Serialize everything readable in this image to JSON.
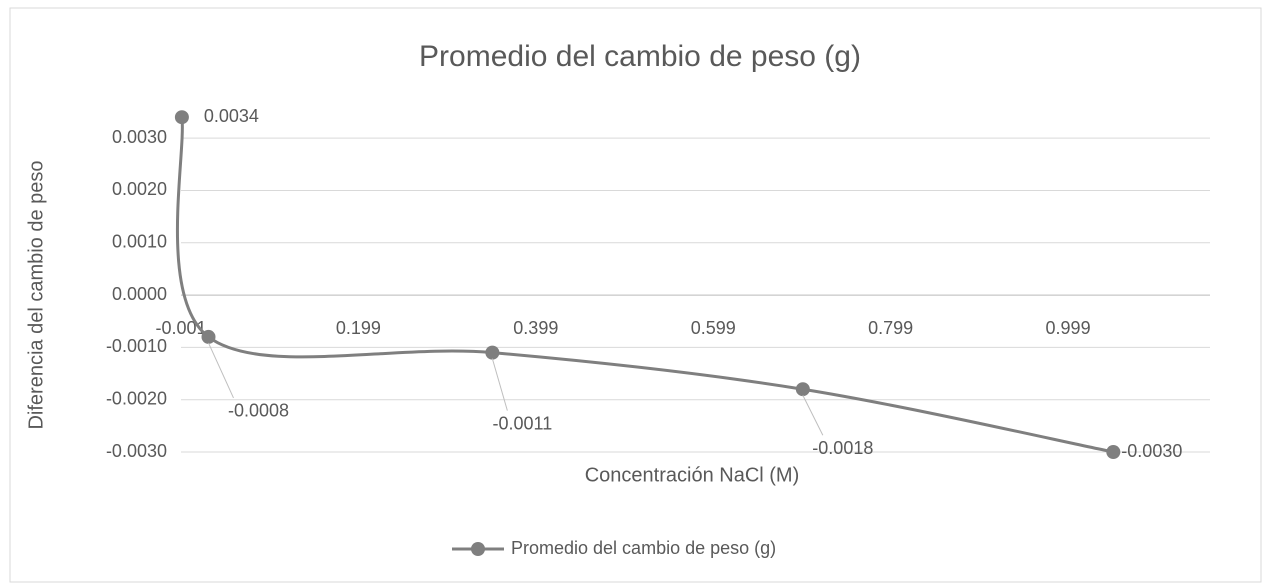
{
  "chart_data": {
    "type": "line",
    "title": "Promedio del cambio de peso (g)",
    "x_label": "Concentración NaCl  (M)",
    "y_label": "Diferencia del cambio de peso",
    "x": [
      0,
      0.03,
      0.35,
      0.7,
      1.05
    ],
    "series": [
      {
        "name": "Promedio del cambio de peso (g)",
        "color": "#7f7f7f",
        "values": [
          0.0034,
          -0.0008,
          -0.0011,
          -0.0018,
          -0.003
        ],
        "value_labels": [
          "0.0034",
          "-0.0008",
          "-0.0011",
          "-0.0018",
          "-0.0030"
        ]
      }
    ],
    "xlim": [
      -0.001,
      1.159
    ],
    "xticks": [
      -0.001,
      0.199,
      0.399,
      0.599,
      0.799,
      0.999
    ],
    "ylim": [
      -0.003,
      0.0035
    ],
    "yticks": [
      {
        "value": 0.003,
        "label": "0.0030"
      },
      {
        "value": 0.002,
        "label": "0.0020"
      },
      {
        "value": 0.001,
        "label": "0.0010"
      },
      {
        "value": 0,
        "label": "0.0000"
      },
      {
        "value": -0.001,
        "label": "-0.0010"
      },
      {
        "value": -0.002,
        "label": "-0.0020"
      },
      {
        "value": -0.003,
        "label": "-0.0030"
      }
    ],
    "grid": true,
    "smooth": true,
    "legend": "bottom"
  }
}
